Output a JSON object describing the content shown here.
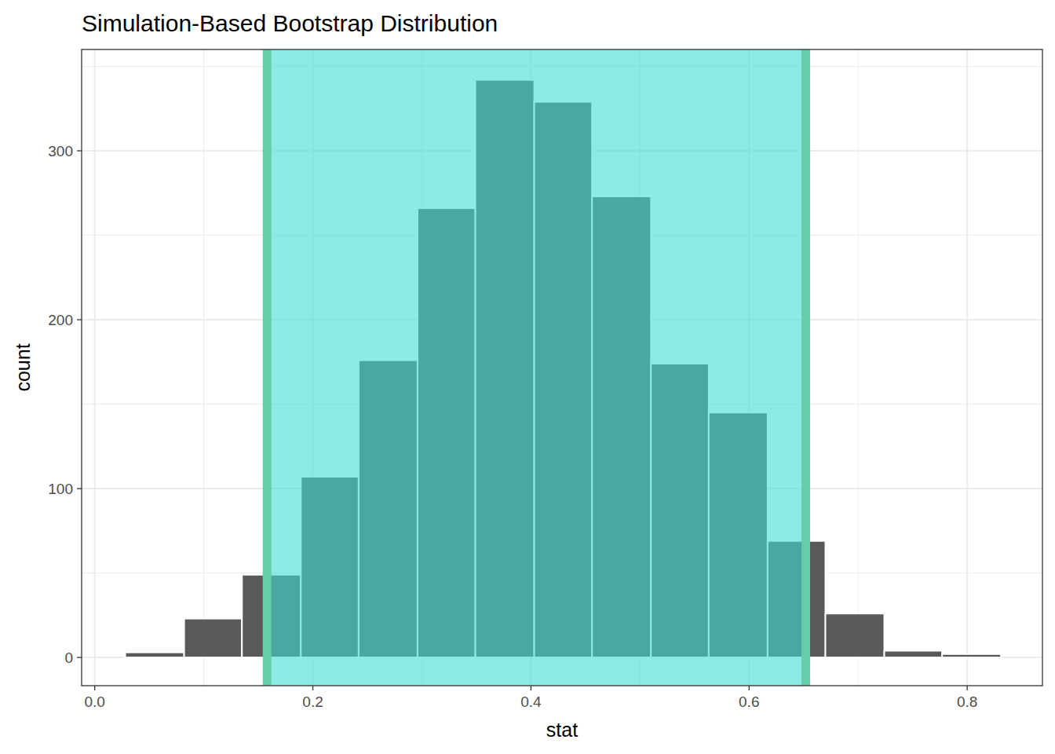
{
  "chart_data": {
    "type": "histogram",
    "title": "Simulation-Based Bootstrap Distribution",
    "x_label": "stat",
    "y_label": "count",
    "bins": [
      0.028,
      0.082,
      0.135,
      0.189,
      0.242,
      0.296,
      0.349,
      0.403,
      0.456,
      0.51,
      0.563,
      0.617,
      0.67,
      0.724,
      0.777,
      0.831
    ],
    "values": [
      3,
      23,
      49,
      107,
      176,
      266,
      342,
      329,
      273,
      174,
      145,
      69,
      26,
      4,
      2
    ],
    "color": "#595959",
    "interval": [
      0.158,
      0.652
    ],
    "xlim": [
      -0.012,
      0.869
    ],
    "ylim": [
      -16.7,
      360
    ],
    "xticks": [
      {
        "value": 0,
        "label": "0.0"
      },
      0.2,
      0.4,
      0.6,
      0.8
    ],
    "yticks": [
      0,
      100,
      200,
      300
    ],
    "grid": true
  }
}
